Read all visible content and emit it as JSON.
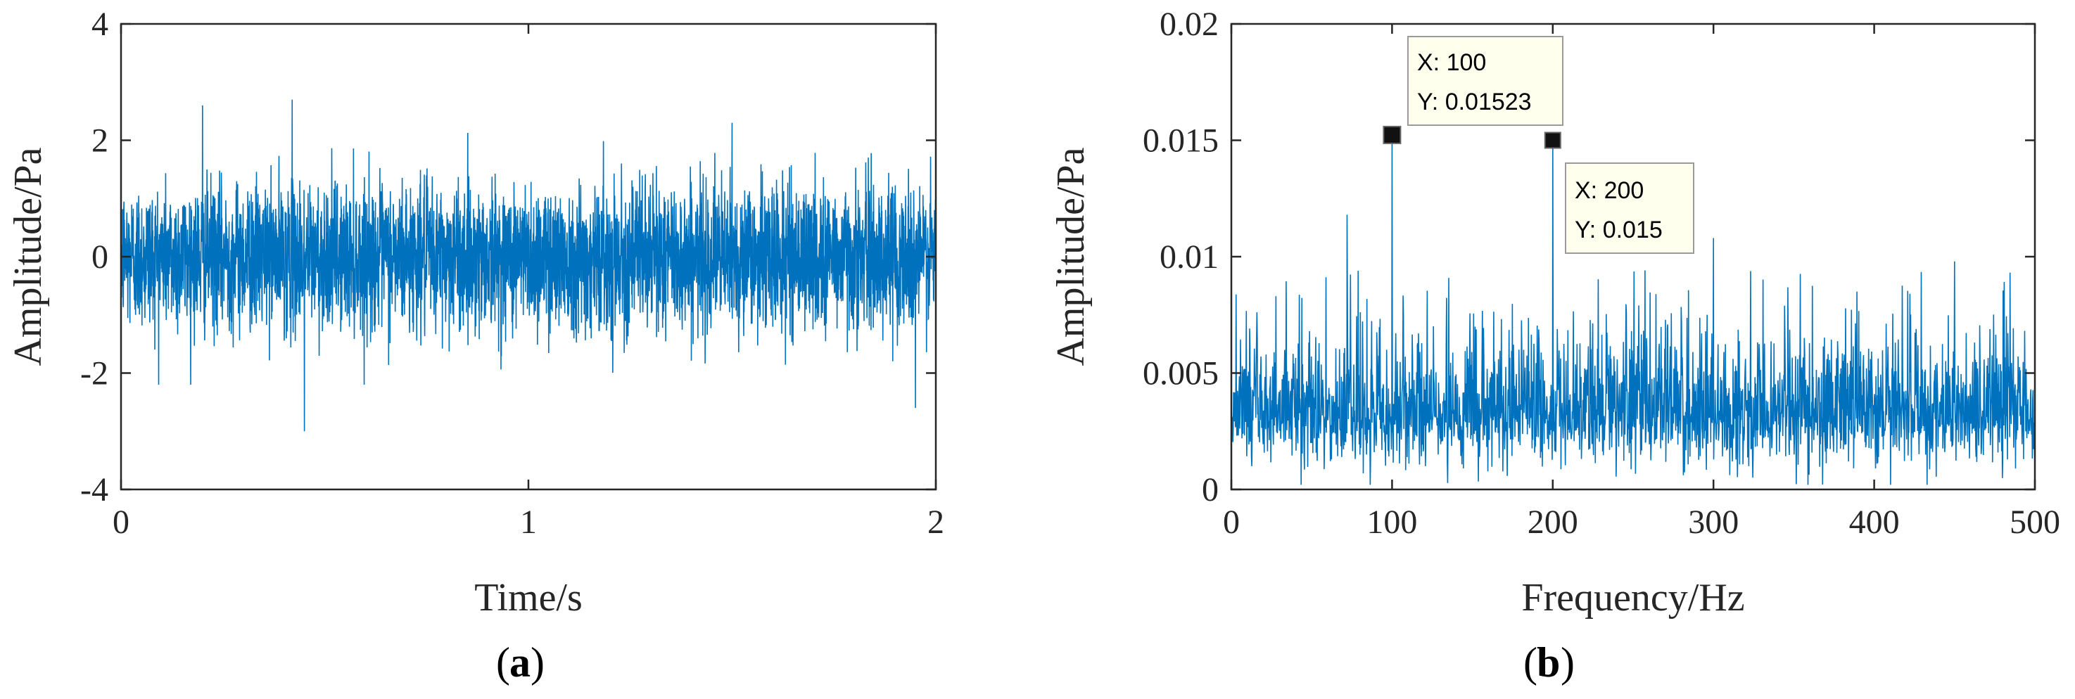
{
  "chart_data": [
    {
      "type": "line",
      "panel_label": "a",
      "xlabel": "Time/s",
      "ylabel": "Amplitude/Pa",
      "xlim": [
        0,
        2
      ],
      "ylim": [
        -4,
        4
      ],
      "xticks": [
        0,
        1,
        2
      ],
      "yticks": [
        -4,
        -2,
        0,
        2,
        4
      ],
      "xtick_labels": [
        "0",
        "1",
        "2"
      ],
      "ytick_labels": [
        "-4",
        "-2",
        "0",
        "2",
        "4"
      ],
      "grid": false,
      "series": [
        {
          "color": "#0072BD",
          "description_points": {
            "x": [
              0,
              0.2,
              0.42,
              0.45,
              0.5,
              1.0,
              1.5,
              1.95,
              2.0
            ],
            "y": [
              0,
              2.6,
              2.7,
              -3.0,
              0.1,
              -0.2,
              2.3,
              -2.6,
              0
            ]
          },
          "typical_envelope": [
            -1.8,
            1.9
          ]
        }
      ]
    },
    {
      "type": "line",
      "panel_label": "b",
      "xlabel": "Frequency/Hz",
      "ylabel": "Amplitude/Pa",
      "xlim": [
        0,
        500
      ],
      "ylim": [
        0,
        0.02
      ],
      "xticks": [
        0,
        100,
        200,
        300,
        400,
        500
      ],
      "yticks": [
        0,
        0.005,
        0.01,
        0.015,
        0.02
      ],
      "xtick_labels": [
        "0",
        "100",
        "200",
        "300",
        "400",
        "500"
      ],
      "ytick_labels": [
        "0",
        "0.005",
        "0.01",
        "0.015",
        "0.02"
      ],
      "grid": false,
      "series": [
        {
          "color": "#0072BD",
          "description_points": {
            "x": [
              72,
              100,
              200,
              300,
              450
            ],
            "y": [
              0.0118,
              0.01523,
              0.015,
              0.0108,
              0.0098
            ]
          },
          "typical_envelope": [
            0.0005,
            0.0065
          ]
        }
      ],
      "datatips": [
        {
          "x": 100,
          "y": 0.01523,
          "x_text": "X: 100",
          "y_text": "Y: 0.01523"
        },
        {
          "x": 200,
          "y": 0.015,
          "x_text": "X: 200",
          "y_text": "Y: 0.015"
        }
      ]
    }
  ]
}
